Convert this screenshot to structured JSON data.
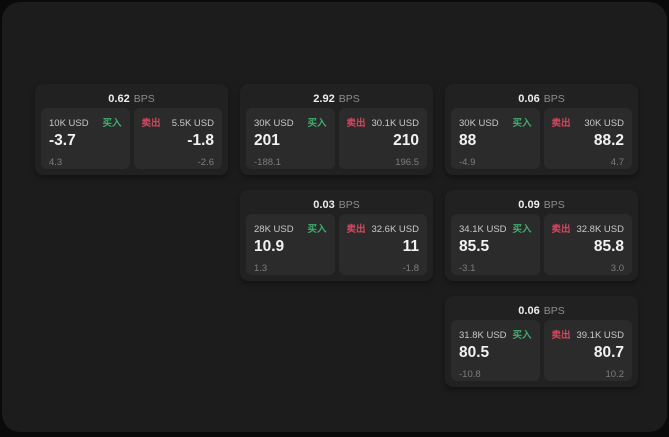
{
  "labels": {
    "bps": "BPS",
    "buy": "买入",
    "sell": "卖出"
  },
  "colors": {
    "buy_green": "#3fae6d",
    "sell_red": "#d5465f",
    "window_bg": "#1c1c1c",
    "card_bg": "#212121",
    "panel_bg": "#2b2b2b"
  },
  "layout": {
    "col_lefts": {
      "1": 33,
      "2": 238,
      "3": 443
    },
    "row_tops": {
      "1": 82,
      "2": 188,
      "3": 294
    }
  },
  "cards": [
    {
      "row": 1,
      "col": 1,
      "bps": "0.62",
      "buy": {
        "amount": "10K USD",
        "price": "-3.7",
        "delta": "4.3"
      },
      "sell": {
        "amount": "5.5K USD",
        "price": "-1.8",
        "delta": "-2.6"
      }
    },
    {
      "row": 1,
      "col": 2,
      "bps": "2.92",
      "buy": {
        "amount": "30K USD",
        "price": "201",
        "delta": "-188.1"
      },
      "sell": {
        "amount": "30.1K USD",
        "price": "210",
        "delta": "196.5"
      }
    },
    {
      "row": 1,
      "col": 3,
      "bps": "0.06",
      "buy": {
        "amount": "30K USD",
        "price": "88",
        "delta": "-4.9"
      },
      "sell": {
        "amount": "30K USD",
        "price": "88.2",
        "delta": "4.7"
      }
    },
    {
      "row": 2,
      "col": 2,
      "bps": "0.03",
      "buy": {
        "amount": "28K USD",
        "price": "10.9",
        "delta": "1.3"
      },
      "sell": {
        "amount": "32.6K USD",
        "price": "11",
        "delta": "-1.8"
      }
    },
    {
      "row": 2,
      "col": 3,
      "bps": "0.09",
      "buy": {
        "amount": "34.1K USD",
        "price": "85.5",
        "delta": "-3.1"
      },
      "sell": {
        "amount": "32.8K USD",
        "price": "85.8",
        "delta": "3.0"
      }
    },
    {
      "row": 3,
      "col": 3,
      "bps": "0.06",
      "buy": {
        "amount": "31.8K USD",
        "price": "80.5",
        "delta": "-10.8"
      },
      "sell": {
        "amount": "39.1K USD",
        "price": "80.7",
        "delta": "10.2"
      }
    }
  ]
}
